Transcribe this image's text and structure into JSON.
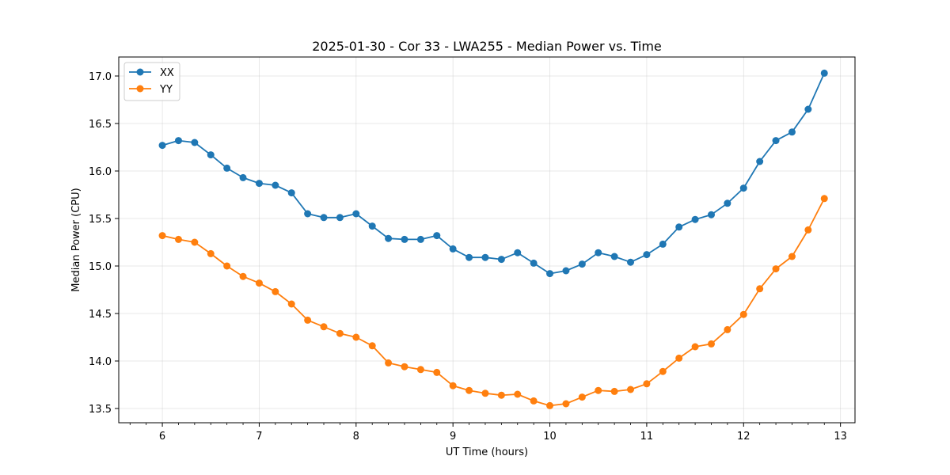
{
  "chart_data": {
    "type": "line",
    "title": "2025-01-30 - Cor 33 - LWA255 - Median Power vs. Time",
    "xlabel": "UT Time (hours)",
    "ylabel": "Median Power (CPU)",
    "xlim": [
      5.55,
      13.15
    ],
    "ylim": [
      13.35,
      17.2
    ],
    "xticks": [
      6,
      7,
      8,
      9,
      10,
      11,
      12,
      13
    ],
    "xtick_labels": [
      "6",
      "7",
      "8",
      "9",
      "10",
      "11",
      "12",
      "13"
    ],
    "yticks": [
      13.5,
      14.0,
      14.5,
      15.0,
      15.5,
      16.0,
      16.5,
      17.0
    ],
    "ytick_labels": [
      "13.5",
      "14.0",
      "14.5",
      "15.0",
      "15.5",
      "16.0",
      "16.5",
      "17.0"
    ],
    "grid": true,
    "legend_position": "top-left",
    "x": [
      6.0,
      6.1667,
      6.3333,
      6.5,
      6.6667,
      6.8333,
      7.0,
      7.1667,
      7.3333,
      7.5,
      7.6667,
      7.8333,
      8.0,
      8.1667,
      8.3333,
      8.5,
      8.6667,
      8.8333,
      9.0,
      9.1667,
      9.3333,
      9.5,
      9.6667,
      9.8333,
      10.0,
      10.1667,
      10.3333,
      10.5,
      10.6667,
      10.8333,
      11.0,
      11.1667,
      11.3333,
      11.5,
      11.6667,
      11.8333,
      12.0,
      12.1667,
      12.3333,
      12.5,
      12.6667,
      12.8333
    ],
    "series": [
      {
        "name": "XX",
        "color": "#1f77b4",
        "values": [
          16.27,
          16.32,
          16.3,
          16.17,
          16.03,
          15.93,
          15.87,
          15.85,
          15.77,
          15.55,
          15.51,
          15.51,
          15.55,
          15.42,
          15.29,
          15.28,
          15.28,
          15.32,
          15.18,
          15.09,
          15.09,
          15.07,
          15.14,
          15.03,
          14.92,
          14.95,
          15.02,
          15.14,
          15.1,
          15.04,
          15.12,
          15.23,
          15.41,
          15.49,
          15.54,
          15.66,
          15.82,
          16.1,
          16.32,
          16.41,
          16.65,
          17.03
        ]
      },
      {
        "name": "YY",
        "color": "#ff7f0e",
        "values": [
          15.32,
          15.28,
          15.25,
          15.13,
          15.0,
          14.89,
          14.82,
          14.73,
          14.6,
          14.43,
          14.36,
          14.29,
          14.25,
          14.16,
          13.98,
          13.94,
          13.91,
          13.88,
          13.74,
          13.69,
          13.66,
          13.64,
          13.65,
          13.58,
          13.53,
          13.55,
          13.62,
          13.69,
          13.68,
          13.7,
          13.76,
          13.89,
          14.03,
          14.15,
          14.18,
          14.33,
          14.49,
          14.76,
          14.97,
          15.1,
          15.38,
          15.71
        ]
      }
    ]
  }
}
